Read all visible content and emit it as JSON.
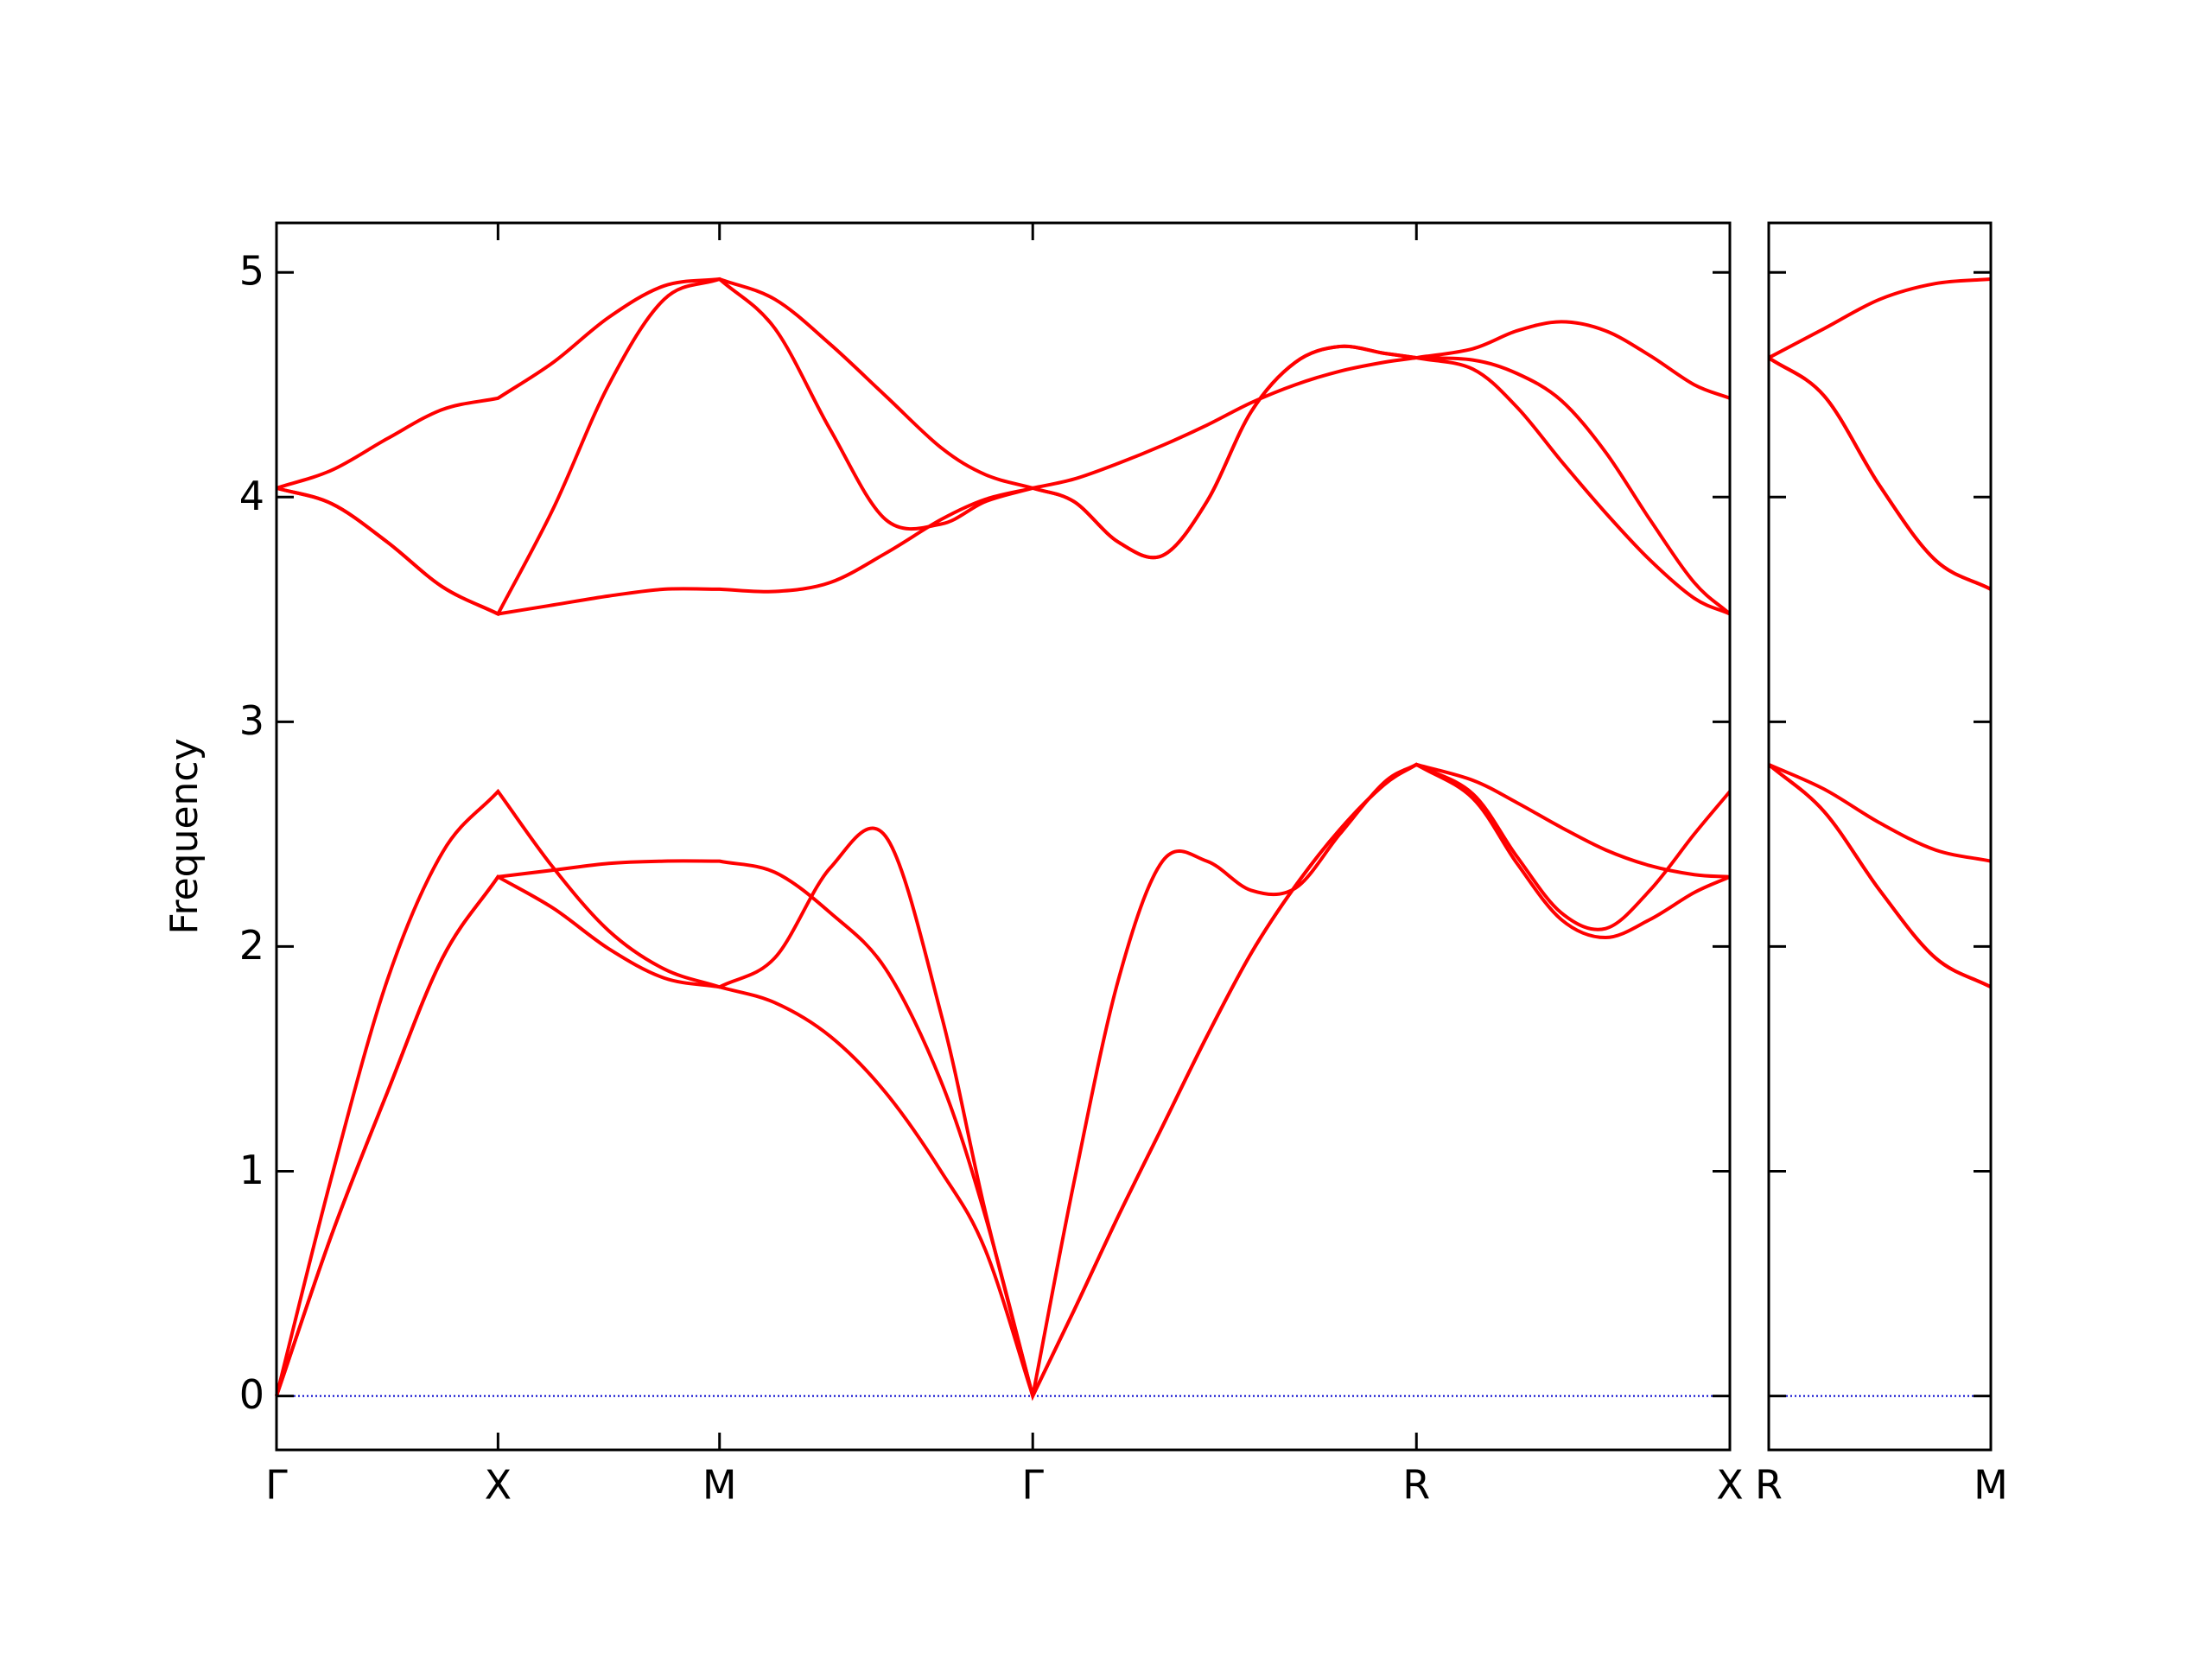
{
  "chart_data": [
    {
      "type": "line",
      "ylabel": "Frequency",
      "color": "#ff0000",
      "hline": 0,
      "hline_color": "#0000cc",
      "show_ytick_labels": true,
      "x": [
        0,
        0.25,
        0.5,
        0.75,
        1,
        1.25,
        1.5,
        1.75,
        2,
        2.25,
        2.5,
        2.75,
        3,
        3.2,
        3.414,
        3.6,
        3.8,
        4,
        4.2,
        4.4,
        4.6,
        4.8,
        5,
        5.146,
        5.4,
        5.6,
        5.8,
        6,
        6.2,
        6.4,
        6.561
      ],
      "xlim": [
        0,
        6.561
      ],
      "xticks": [
        {
          "value": 0,
          "label": "Γ"
        },
        {
          "value": 1,
          "label": "X"
        },
        {
          "value": 2,
          "label": "M"
        },
        {
          "value": 3.414,
          "label": "Γ"
        },
        {
          "value": 5.146,
          "label": "R"
        },
        {
          "value": 6.561,
          "label": "X"
        }
      ],
      "ylim": [
        -0.24,
        5.22
      ],
      "yticks": [
        0,
        1,
        2,
        3,
        4,
        5
      ],
      "series": [
        {
          "values": [
            0,
            0.72,
            1.35,
            1.95,
            2.31,
            2.17,
            1.99,
            1.86,
            1.82,
            1.75,
            1.6,
            1.35,
            1.0,
            0.65,
            0,
            0.38,
            0.8,
            1.2,
            1.6,
            1.97,
            2.27,
            2.52,
            2.72,
            2.81,
            2.66,
            2.37,
            2.12,
            2.04,
            2.12,
            2.24,
            2.31
          ]
        },
        {
          "values": [
            0,
            0.72,
            1.35,
            1.95,
            2.31,
            2.34,
            2.37,
            2.38,
            2.38,
            2.33,
            2.15,
            1.9,
            1.4,
            0.8,
            0,
            0.38,
            0.8,
            1.2,
            1.6,
            1.97,
            2.27,
            2.52,
            2.72,
            2.81,
            2.68,
            2.4,
            2.15,
            2.08,
            2.25,
            2.5,
            2.69
          ]
        },
        {
          "values": [
            0,
            0.98,
            1.85,
            2.42,
            2.69,
            2.35,
            2.07,
            1.9,
            1.82,
            1.95,
            2.35,
            2.49,
            1.7,
            0.82,
            0,
            0.95,
            1.85,
            2.38,
            2.38,
            2.25,
            2.26,
            2.5,
            2.73,
            2.81,
            2.74,
            2.64,
            2.53,
            2.43,
            2.36,
            2.32,
            2.31
          ]
        },
        {
          "values": [
            4.04,
            3.97,
            3.8,
            3.6,
            3.48,
            3.52,
            3.56,
            3.59,
            3.59,
            3.58,
            3.62,
            3.75,
            3.9,
            3.99,
            4.04,
            3.98,
            3.8,
            3.74,
            3.98,
            4.38,
            4.6,
            4.67,
            4.64,
            4.62,
            4.57,
            4.4,
            4.16,
            3.93,
            3.72,
            3.55,
            3.48
          ]
        },
        {
          "values": [
            4.04,
            3.97,
            3.8,
            3.6,
            3.48,
            3.95,
            4.5,
            4.88,
            4.97,
            4.75,
            4.3,
            3.9,
            3.88,
            3.98,
            4.04,
            3.98,
            3.8,
            3.74,
            3.98,
            4.38,
            4.6,
            4.67,
            4.64,
            4.62,
            4.61,
            4.55,
            4.43,
            4.2,
            3.9,
            3.62,
            3.48
          ]
        },
        {
          "values": [
            4.04,
            4.12,
            4.26,
            4.39,
            4.44,
            4.6,
            4.8,
            4.94,
            4.97,
            4.88,
            4.68,
            4.45,
            4.22,
            4.1,
            4.04,
            4.08,
            4.15,
            4.23,
            4.32,
            4.42,
            4.5,
            4.56,
            4.6,
            4.62,
            4.66,
            4.74,
            4.78,
            4.74,
            4.63,
            4.5,
            4.44
          ]
        }
      ]
    },
    {
      "type": "line",
      "color": "#ff0000",
      "hline": 0,
      "hline_color": "#0000cc",
      "show_ytick_labels": false,
      "x": [
        0,
        0.25,
        0.5,
        0.75,
        1
      ],
      "xlim": [
        0,
        1
      ],
      "xticks": [
        {
          "value": 0,
          "label": "R"
        },
        {
          "value": 1,
          "label": "M"
        }
      ],
      "ylim": [
        -0.24,
        5.22
      ],
      "yticks": [
        0,
        1,
        2,
        3,
        4,
        5
      ],
      "series": [
        {
          "values": [
            2.81,
            2.6,
            2.25,
            1.95,
            1.82
          ]
        },
        {
          "values": [
            2.81,
            2.6,
            2.25,
            1.95,
            1.82
          ]
        },
        {
          "values": [
            2.81,
            2.7,
            2.55,
            2.43,
            2.38
          ]
        },
        {
          "values": [
            4.62,
            4.45,
            4.05,
            3.72,
            3.59
          ]
        },
        {
          "values": [
            4.62,
            4.45,
            4.05,
            3.72,
            3.59
          ]
        },
        {
          "values": [
            4.62,
            4.75,
            4.88,
            4.95,
            4.97
          ]
        }
      ]
    }
  ]
}
